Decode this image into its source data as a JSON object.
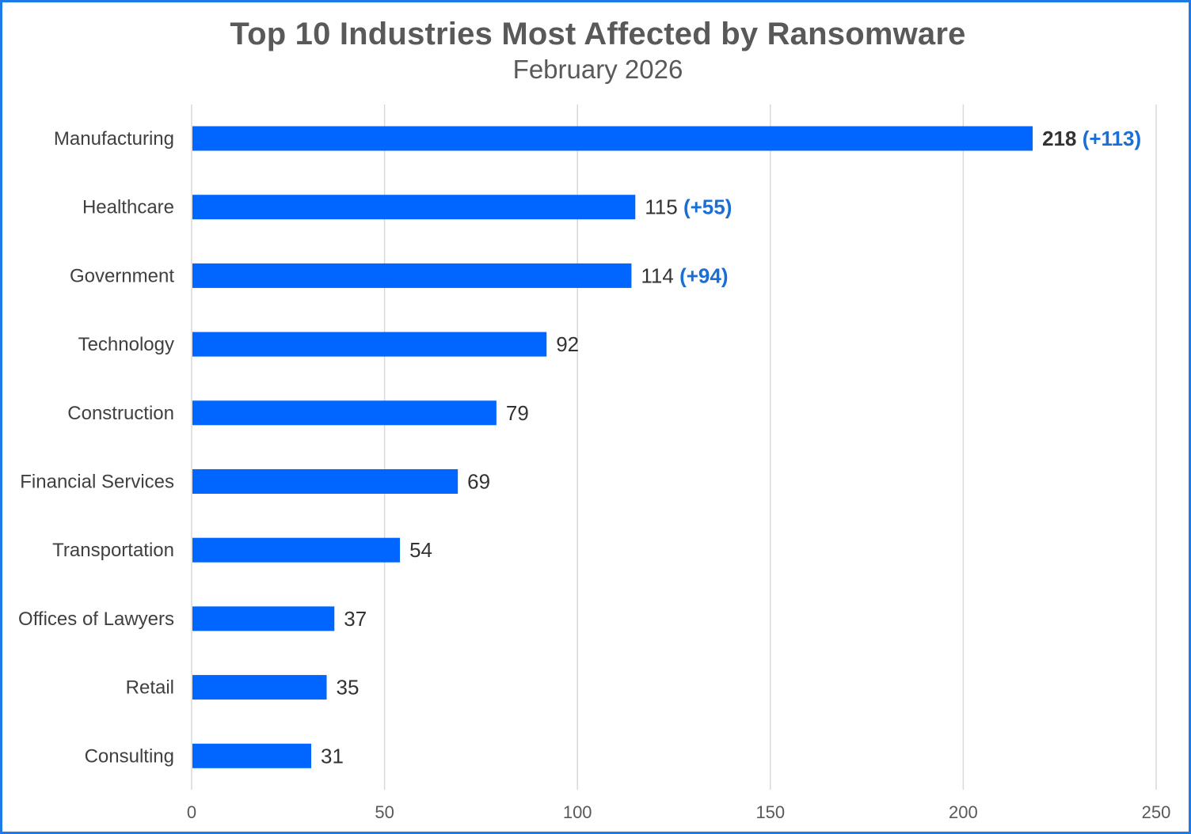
{
  "colors": {
    "bar": "#0066ff",
    "delta": "#1a6fd6",
    "grid": "#d9d9d9",
    "frame": "#1f7ae8"
  },
  "chart_data": {
    "type": "bar",
    "orientation": "horizontal",
    "title": "Top 10 Industries Most Affected by Ransomware",
    "subtitle": "February  2026",
    "categories": [
      "Manufacturing",
      "Healthcare",
      "Government",
      "Technology",
      "Construction",
      "Financial Services",
      "Transportation",
      "Offices of Lawyers",
      "Retail",
      "Consulting"
    ],
    "values": [
      218,
      115,
      114,
      92,
      79,
      69,
      54,
      37,
      35,
      31
    ],
    "change_labels": [
      "(+113)",
      "(+55)",
      "(+94)",
      "",
      "",
      "",
      "",
      "",
      "",
      ""
    ],
    "xlim": [
      0,
      250
    ],
    "xticks": [
      0,
      50,
      100,
      150,
      200,
      250
    ],
    "grid": "vertical"
  }
}
